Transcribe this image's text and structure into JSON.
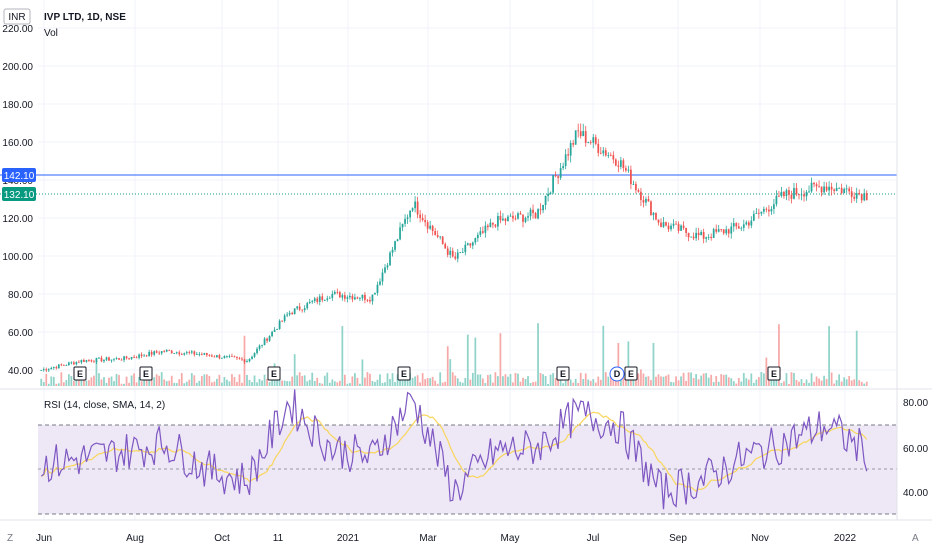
{
  "currency_label": "INR",
  "symbol_title": "IVP LTD, 1D, NSE",
  "volume_label": "Vol",
  "price_axis": {
    "ticks": [
      "220.00",
      "200.00",
      "180.00",
      "160.00",
      "140.00",
      "120.00",
      "100.00",
      "80.00",
      "60.00",
      "40.00"
    ],
    "tick_values": [
      220,
      200,
      180,
      160,
      140,
      120,
      100,
      80,
      60,
      40
    ]
  },
  "price_tags": {
    "resistance": {
      "text": "142.10",
      "value": 142.1,
      "color": "#2962ff"
    },
    "last": {
      "text": "132.10",
      "value": 132.1,
      "color": "#089981"
    }
  },
  "rsi": {
    "label": "RSI (14, close, SMA, 14, 2)",
    "ticks": [
      "80.00",
      "60.00",
      "40.00"
    ],
    "tick_values": [
      80,
      60,
      40
    ],
    "upper_band": 70,
    "middle_band": 50,
    "lower_band": 30,
    "line_color": "#7e57c2",
    "ma_color": "#f9d65a"
  },
  "time_axis": {
    "labels": [
      "Jun",
      "Aug",
      "Oct",
      "11",
      "2021",
      "Mar",
      "May",
      "Jul",
      "Sep",
      "Nov",
      "2022"
    ]
  },
  "events": [
    {
      "label": "E"
    },
    {
      "label": "E"
    },
    {
      "label": "E"
    },
    {
      "label": "E"
    },
    {
      "label": "E"
    },
    {
      "label": "D"
    },
    {
      "label": "E"
    },
    {
      "label": "E"
    }
  ],
  "corner_left": "Z",
  "corner_right": "A",
  "colors": {
    "up": "#26a69a",
    "down": "#ef5350",
    "vol_up": "#8fd3c9",
    "vol_down": "#f6a9a8",
    "grid": "#f0f3fa",
    "rsi_fill": "#ede7f6"
  },
  "chart_data": {
    "type": "candlestick",
    "x": [
      "2020-05",
      "2020-06",
      "2020-07",
      "2020-08",
      "2020-09",
      "2020-10",
      "2020-11",
      "2020-12",
      "2021-01",
      "2021-02",
      "2021-03",
      "2021-04",
      "2021-05",
      "2021-06",
      "2021-07",
      "2021-08",
      "2021-09",
      "2021-10",
      "2021-11",
      "2021-12",
      "2022-01"
    ],
    "close": [
      40,
      45,
      46,
      50,
      48,
      45,
      70,
      80,
      78,
      128,
      98,
      118,
      122,
      165,
      150,
      117,
      110,
      116,
      132,
      137,
      132
    ],
    "rsi_approx": [
      52,
      55,
      58,
      62,
      50,
      45,
      80,
      60,
      55,
      82,
      40,
      58,
      60,
      75,
      70,
      40,
      45,
      55,
      62,
      70,
      58
    ],
    "ylim": [
      32,
      222
    ],
    "rsi_ylim": [
      20,
      90
    ]
  }
}
